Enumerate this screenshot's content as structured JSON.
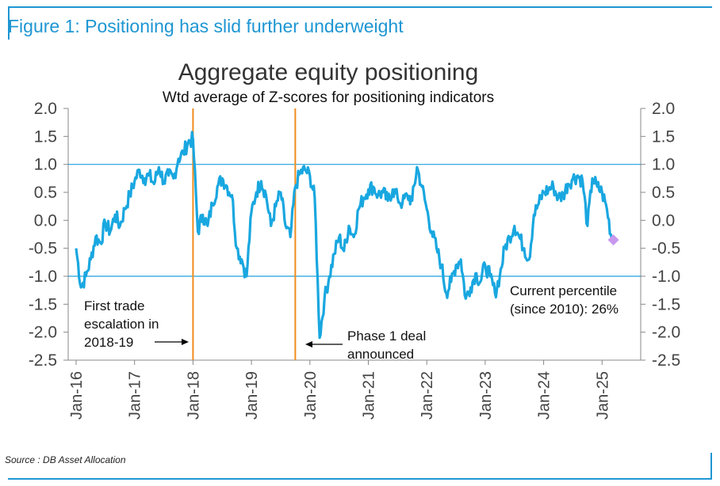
{
  "figure": {
    "title": "Figure 1: Positioning has slid further underweight",
    "source": "Source : DB Asset Allocation"
  },
  "colors": {
    "accent": "#1e96d3",
    "series": "#19a7e0",
    "event_line": "#f08c1e",
    "ref_line": "#1ca0dc",
    "marker": "#c898ee"
  },
  "chart_data": {
    "type": "line",
    "title": "Aggregate equity positioning",
    "subtitle": "Wtd average of Z-scores for positioning indicators",
    "xlabel": "",
    "ylabel": "",
    "ylim": [
      -2.5,
      2.0
    ],
    "y_ticks": [
      "2.0",
      "1.5",
      "1.0",
      "0.5",
      "0.0",
      "-0.5",
      "-1.0",
      "-1.5",
      "-2.0",
      "-2.5"
    ],
    "x_ticks": [
      "Jan-16",
      "Jan-17",
      "Jan-18",
      "Jan-19",
      "Jan-20",
      "Jan-21",
      "Jan-22",
      "Jan-23",
      "Jan-24",
      "Jan-25"
    ],
    "grid": false,
    "reference_lines": [
      1.0,
      -1.0
    ],
    "event_lines": [
      {
        "date": "2018-01",
        "label": "First trade escalation in 2018-19"
      },
      {
        "date": "2019-10",
        "label": "Phase 1 deal announced"
      }
    ],
    "annotations": {
      "trade_line1": "First trade",
      "trade_line2": "escalation in",
      "trade_line3": "2018-19",
      "phase_line1": "Phase 1 deal",
      "phase_line2": "announced",
      "current_line1": "Current percentile",
      "current_line2": "(since 2010): 26%"
    },
    "current_marker": {
      "date": "2025-03",
      "value": -0.35
    },
    "series": [
      {
        "x": [
          "2016-01",
          "2016-02",
          "2016-03",
          "2016-04",
          "2016-05",
          "2016-06",
          "2016-07",
          "2016-08",
          "2016-09",
          "2016-10",
          "2016-11",
          "2016-12",
          "2017-01",
          "2017-02",
          "2017-03",
          "2017-04",
          "2017-05",
          "2017-06",
          "2017-07",
          "2017-08",
          "2017-09",
          "2017-10",
          "2017-11",
          "2017-12",
          "2018-01",
          "2018-02",
          "2018-03",
          "2018-04",
          "2018-05",
          "2018-06",
          "2018-07",
          "2018-08",
          "2018-09",
          "2018-10",
          "2018-11",
          "2018-12",
          "2019-01",
          "2019-02",
          "2019-03",
          "2019-04",
          "2019-05",
          "2019-06",
          "2019-07",
          "2019-08",
          "2019-09",
          "2019-10",
          "2019-11",
          "2019-12",
          "2020-01",
          "2020-02",
          "2020-03",
          "2020-04",
          "2020-05",
          "2020-06",
          "2020-07",
          "2020-08",
          "2020-09",
          "2020-10",
          "2020-11",
          "2020-12",
          "2021-01",
          "2021-02",
          "2021-03",
          "2021-04",
          "2021-05",
          "2021-06",
          "2021-07",
          "2021-08",
          "2021-09",
          "2021-10",
          "2021-11",
          "2021-12",
          "2022-01",
          "2022-02",
          "2022-03",
          "2022-04",
          "2022-05",
          "2022-06",
          "2022-07",
          "2022-08",
          "2022-09",
          "2022-10",
          "2022-11",
          "2022-12",
          "2023-01",
          "2023-02",
          "2023-03",
          "2023-04",
          "2023-05",
          "2023-06",
          "2023-07",
          "2023-08",
          "2023-09",
          "2023-10",
          "2023-11",
          "2023-12",
          "2024-01",
          "2024-02",
          "2024-03",
          "2024-04",
          "2024-05",
          "2024-06",
          "2024-07",
          "2024-08",
          "2024-09",
          "2024-10",
          "2024-11",
          "2024-12",
          "2025-01",
          "2025-02",
          "2025-03"
        ],
        "values": [
          -0.5,
          -1.2,
          -1.0,
          -0.7,
          -0.3,
          -0.4,
          -0.05,
          -0.2,
          0.1,
          -0.1,
          0.2,
          0.45,
          0.7,
          0.9,
          0.75,
          0.8,
          0.65,
          0.95,
          0.7,
          0.8,
          0.75,
          1.1,
          1.2,
          1.4,
          1.45,
          -0.2,
          0.1,
          -0.1,
          0.3,
          0.6,
          0.75,
          0.6,
          0.45,
          -0.5,
          -0.7,
          -1.0,
          0.15,
          0.5,
          0.7,
          0.45,
          -0.1,
          0.25,
          0.5,
          -0.1,
          -0.3,
          0.6,
          0.85,
          0.9,
          0.8,
          0.4,
          -2.1,
          -1.4,
          -1.0,
          -0.6,
          -0.3,
          -0.55,
          -0.1,
          -0.3,
          0.2,
          0.4,
          0.55,
          0.6,
          0.45,
          0.5,
          0.35,
          0.55,
          0.4,
          0.3,
          0.45,
          0.35,
          0.95,
          0.6,
          0.2,
          -0.2,
          -0.5,
          -0.8,
          -1.3,
          -1.1,
          -0.8,
          -0.7,
          -1.4,
          -1.2,
          -0.95,
          -1.1,
          -0.8,
          -1.0,
          -1.3,
          -1.0,
          -0.5,
          -0.3,
          -0.1,
          -0.3,
          -0.5,
          -0.7,
          0.1,
          0.3,
          0.5,
          0.55,
          0.6,
          0.4,
          0.45,
          0.65,
          0.75,
          0.8,
          0.7,
          -0.1,
          0.75,
          0.6,
          0.5,
          0.2,
          -0.35
        ]
      }
    ]
  }
}
